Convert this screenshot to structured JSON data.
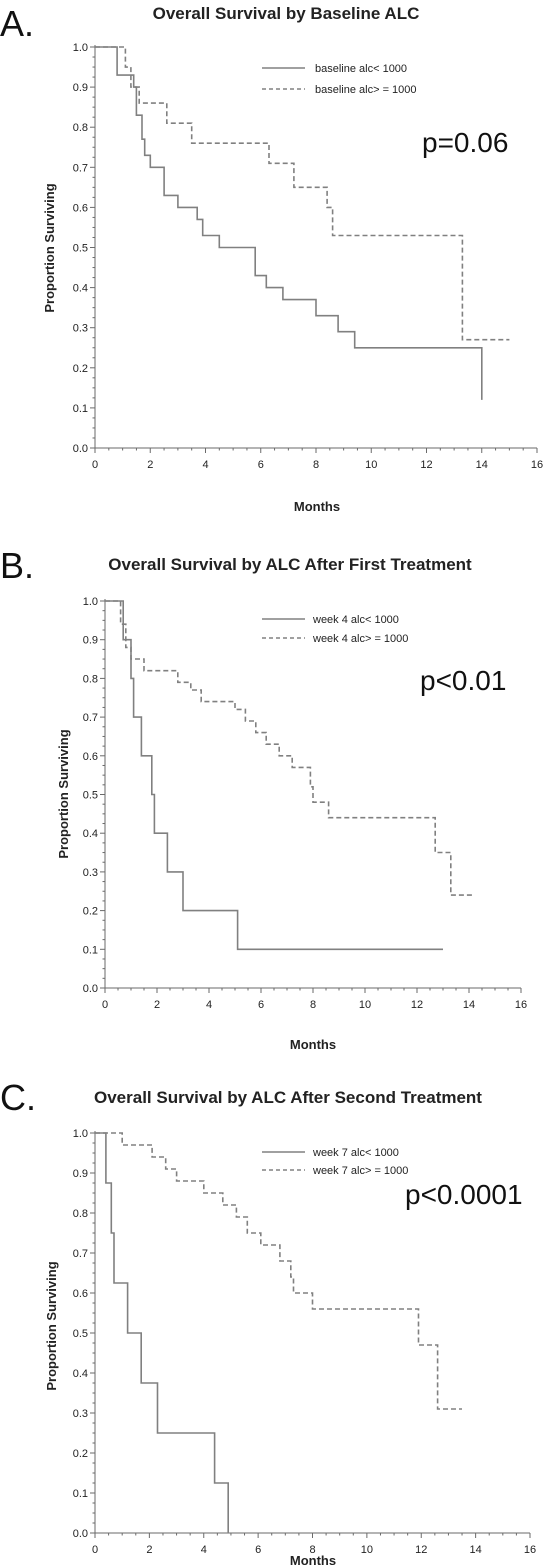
{
  "chart_data": [
    {
      "panel_letter": "A.",
      "type": "line",
      "title": "Overall Survival by Baseline ALC",
      "xlabel": "Months",
      "ylabel": "Proportion Surviving",
      "xlim": [
        0,
        16
      ],
      "ylim": [
        0.0,
        1.0
      ],
      "x_ticks": [
        0,
        2,
        4,
        6,
        8,
        10,
        12,
        14,
        16
      ],
      "y_ticks": [
        0.0,
        0.1,
        0.2,
        0.3,
        0.4,
        0.5,
        0.6,
        0.7,
        0.8,
        0.9,
        1.0
      ],
      "grid": false,
      "legend_position": "top-right",
      "annotation": "p=0.06",
      "series": [
        {
          "name": "baseline alc< 1000",
          "line_style": "solid",
          "color": "#808080",
          "steps": [
            [
              0,
              1.0
            ],
            [
              0.8,
              0.93
            ],
            [
              1.4,
              0.9
            ],
            [
              1.5,
              0.83
            ],
            [
              1.7,
              0.77
            ],
            [
              1.8,
              0.73
            ],
            [
              2.0,
              0.7
            ],
            [
              2.5,
              0.63
            ],
            [
              3.0,
              0.6
            ],
            [
              3.7,
              0.57
            ],
            [
              3.9,
              0.53
            ],
            [
              4.5,
              0.5
            ],
            [
              5.8,
              0.43
            ],
            [
              6.2,
              0.4
            ],
            [
              6.8,
              0.37
            ],
            [
              7.3,
              0.37
            ],
            [
              8.0,
              0.33
            ],
            [
              8.8,
              0.29
            ],
            [
              9.4,
              0.25
            ],
            [
              14.0,
              0.12
            ]
          ],
          "end_x": 14.0
        },
        {
          "name": "baseline alc> = 1000",
          "line_style": "dashed",
          "color": "#808080",
          "steps": [
            [
              0,
              1.0
            ],
            [
              1.1,
              0.95
            ],
            [
              1.3,
              0.9
            ],
            [
              1.6,
              0.86
            ],
            [
              2.6,
              0.81
            ],
            [
              3.5,
              0.76
            ],
            [
              6.3,
              0.71
            ],
            [
              7.2,
              0.65
            ],
            [
              8.4,
              0.6
            ],
            [
              8.6,
              0.53
            ],
            [
              13.3,
              0.27
            ]
          ],
          "end_x": 15.0
        }
      ]
    },
    {
      "panel_letter": "B.",
      "type": "line",
      "title": "Overall Survival by ALC After First Treatment",
      "xlabel": "Months",
      "ylabel": "Proportion Surviving",
      "xlim": [
        0,
        16
      ],
      "ylim": [
        0.0,
        1.0
      ],
      "x_ticks": [
        0,
        2,
        4,
        6,
        8,
        10,
        12,
        14,
        16
      ],
      "y_ticks": [
        0.0,
        0.1,
        0.2,
        0.3,
        0.4,
        0.5,
        0.6,
        0.7,
        0.8,
        0.9,
        1.0
      ],
      "grid": false,
      "legend_position": "top-right",
      "annotation": "p<0.01",
      "series": [
        {
          "name": "week  4  alc< 1000",
          "line_style": "solid",
          "color": "#808080",
          "steps": [
            [
              0,
              1.0
            ],
            [
              0.7,
              0.9
            ],
            [
              1.0,
              0.8
            ],
            [
              1.1,
              0.7
            ],
            [
              1.4,
              0.6
            ],
            [
              1.8,
              0.5
            ],
            [
              1.9,
              0.4
            ],
            [
              2.4,
              0.3
            ],
            [
              3.0,
              0.2
            ],
            [
              5.1,
              0.1
            ]
          ],
          "end_x": 13.0
        },
        {
          "name": "week  4  alc> = 1000",
          "line_style": "dashed",
          "color": "#808080",
          "steps": [
            [
              0,
              1.0
            ],
            [
              0.6,
              0.94
            ],
            [
              0.8,
              0.88
            ],
            [
              1.0,
              0.85
            ],
            [
              1.5,
              0.82
            ],
            [
              2.8,
              0.79
            ],
            [
              3.3,
              0.77
            ],
            [
              3.7,
              0.74
            ],
            [
              5.0,
              0.72
            ],
            [
              5.4,
              0.69
            ],
            [
              5.8,
              0.66
            ],
            [
              6.2,
              0.63
            ],
            [
              6.7,
              0.6
            ],
            [
              7.2,
              0.57
            ],
            [
              7.9,
              0.52
            ],
            [
              8.0,
              0.48
            ],
            [
              8.6,
              0.44
            ],
            [
              12.7,
              0.35
            ],
            [
              13.3,
              0.24
            ]
          ],
          "end_x": 14.2
        }
      ]
    },
    {
      "panel_letter": "C.",
      "type": "line",
      "title": "Overall Survival by ALC After Second Treatment",
      "xlabel": "Months",
      "ylabel": "Proportion Surviving",
      "xlim": [
        0,
        16
      ],
      "ylim": [
        0.0,
        1.0
      ],
      "x_ticks": [
        0,
        2,
        4,
        6,
        8,
        10,
        12,
        14,
        16
      ],
      "y_ticks": [
        0.0,
        0.1,
        0.2,
        0.3,
        0.4,
        0.5,
        0.6,
        0.7,
        0.8,
        0.9,
        1.0
      ],
      "grid": false,
      "legend_position": "top-right",
      "annotation": "p<0.0001",
      "series": [
        {
          "name": "week  7  alc< 1000",
          "line_style": "solid",
          "color": "#808080",
          "steps": [
            [
              0,
              1.0
            ],
            [
              0.4,
              0.875
            ],
            [
              0.6,
              0.75
            ],
            [
              0.7,
              0.625
            ],
            [
              1.2,
              0.5
            ],
            [
              1.7,
              0.375
            ],
            [
              2.3,
              0.25
            ],
            [
              4.4,
              0.125
            ],
            [
              4.9,
              0.0
            ]
          ],
          "end_x": 4.9
        },
        {
          "name": "week  7  alc> = 1000",
          "line_style": "dashed",
          "color": "#808080",
          "steps": [
            [
              0,
              1.0
            ],
            [
              1.0,
              0.97
            ],
            [
              2.1,
              0.94
            ],
            [
              2.6,
              0.91
            ],
            [
              3.0,
              0.88
            ],
            [
              4.0,
              0.85
            ],
            [
              4.7,
              0.82
            ],
            [
              5.2,
              0.79
            ],
            [
              5.6,
              0.75
            ],
            [
              6.1,
              0.72
            ],
            [
              6.8,
              0.68
            ],
            [
              7.2,
              0.64
            ],
            [
              7.3,
              0.6
            ],
            [
              8.0,
              0.56
            ],
            [
              11.9,
              0.47
            ],
            [
              12.6,
              0.31
            ]
          ],
          "end_x": 13.5
        }
      ]
    }
  ]
}
